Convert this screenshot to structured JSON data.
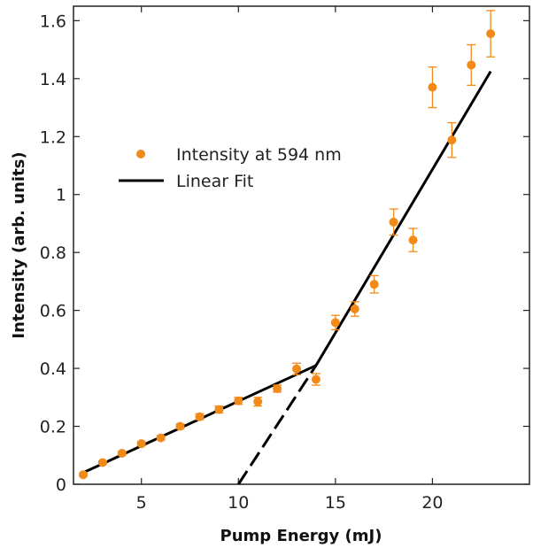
{
  "chart_data": {
    "type": "scatter",
    "xlabel": "Pump Energy (mJ)",
    "ylabel": "Intensity (arb. units)",
    "xlim": [
      1.5,
      25
    ],
    "ylim": [
      0,
      1.65
    ],
    "xticks": [
      5,
      10,
      15,
      20
    ],
    "yticks": [
      0,
      0.2,
      0.4,
      0.6,
      0.8,
      1,
      1.2,
      1.4,
      1.6
    ],
    "xtick_labels": [
      "5",
      "10",
      "15",
      "20"
    ],
    "ytick_labels": [
      "0",
      "0.2",
      "0.4",
      "0.6",
      "0.8",
      "1",
      "1.2",
      "1.4",
      "1.6"
    ],
    "grid": false,
    "legend_position": "upper-left",
    "series": [
      {
        "name": "Intensity at 594 nm",
        "kind": "scatter-errorbar",
        "color": "#f28a1a",
        "x": [
          2,
          3,
          4,
          5,
          6,
          7,
          8,
          9,
          10,
          11,
          12,
          13,
          14,
          15,
          16,
          17,
          18,
          19,
          20,
          21,
          22,
          23
        ],
        "y": [
          0.033,
          0.075,
          0.107,
          0.14,
          0.16,
          0.2,
          0.233,
          0.258,
          0.288,
          0.285,
          0.33,
          0.398,
          0.362,
          0.558,
          0.605,
          0.69,
          0.905,
          0.843,
          1.37,
          1.188,
          1.447,
          1.555
        ],
        "yerr": [
          0.005,
          0.005,
          0.006,
          0.007,
          0.007,
          0.008,
          0.01,
          0.012,
          0.012,
          0.015,
          0.012,
          0.02,
          0.02,
          0.025,
          0.025,
          0.03,
          0.045,
          0.04,
          0.07,
          0.06,
          0.07,
          0.08
        ]
      },
      {
        "name": "Linear Fit",
        "kind": "line",
        "color": "#000000",
        "segments": [
          {
            "x": [
              2,
              14
            ],
            "y": [
              0.04,
              0.41
            ],
            "style": "solid"
          },
          {
            "x": [
              10,
              14
            ],
            "y": [
              0,
              0.41
            ],
            "style": "dashed"
          },
          {
            "x": [
              14,
              23
            ],
            "y": [
              0.41,
              1.425
            ],
            "style": "solid"
          }
        ]
      }
    ]
  }
}
